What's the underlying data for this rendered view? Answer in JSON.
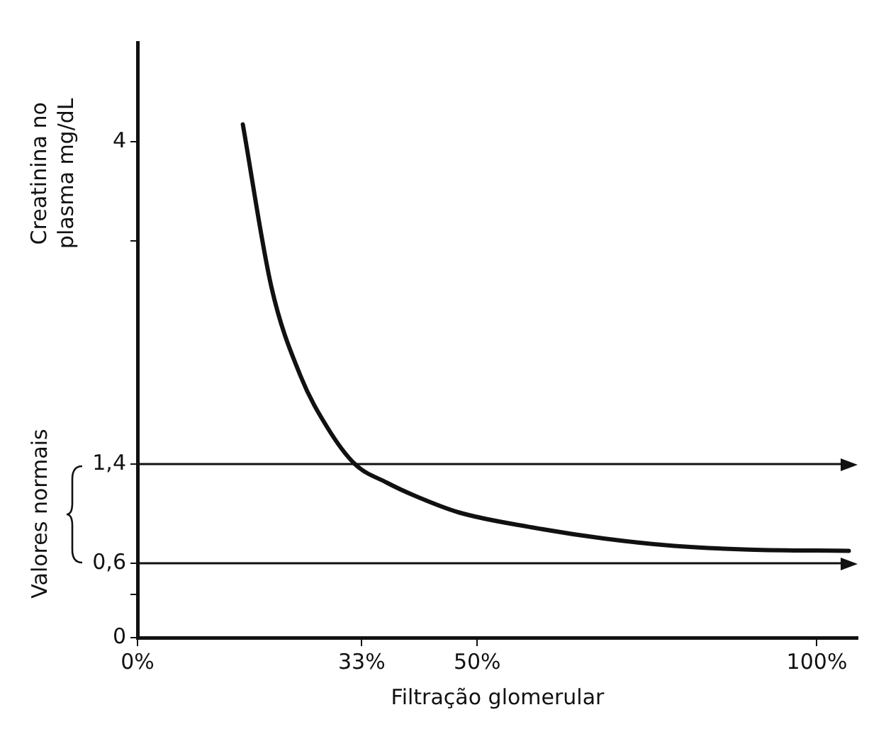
{
  "chart_data": {
    "type": "line",
    "xlabel": "Filtração glomerular",
    "ylabel": "Creatinina no plasma mg/dL",
    "x": [
      15.5,
      19.7,
      24,
      28,
      32,
      36.7,
      41,
      47.3,
      58,
      68.6,
      79,
      90,
      104.7
    ],
    "series": [
      {
        "color": "#111111",
        "values": [
          4.14,
          2.83,
          2.11,
          1.69,
          1.4,
          1.25,
          1.14,
          1.01,
          0.89,
          0.8,
          0.74,
          0.71,
          0.7
        ]
      }
    ],
    "xlim": [
      0,
      106
    ],
    "xticks": [
      {
        "value": 0,
        "label": "0%"
      },
      {
        "value": 33,
        "label": "33%"
      },
      {
        "value": 50,
        "label": "50%"
      },
      {
        "value": 100,
        "label": "100%"
      }
    ],
    "ylim": [
      0,
      4.8
    ],
    "yticks": [
      0,
      {
        "value": 0.35,
        "label": null
      },
      {
        "value": 0.6,
        "label": "0,6"
      },
      {
        "value": 1.4,
        "label": "1,4"
      },
      {
        "value": 3.2,
        "label": null
      },
      4
    ],
    "ref_lines": [
      {
        "axis": "y",
        "value": 1.4,
        "color": "#111111"
      },
      {
        "axis": "y",
        "value": 0.6,
        "color": "#111111"
      }
    ],
    "annotations": [
      "Valores normais"
    ],
    "grid": false,
    "legend": false,
    "marker": "none",
    "line_style": "solid"
  }
}
